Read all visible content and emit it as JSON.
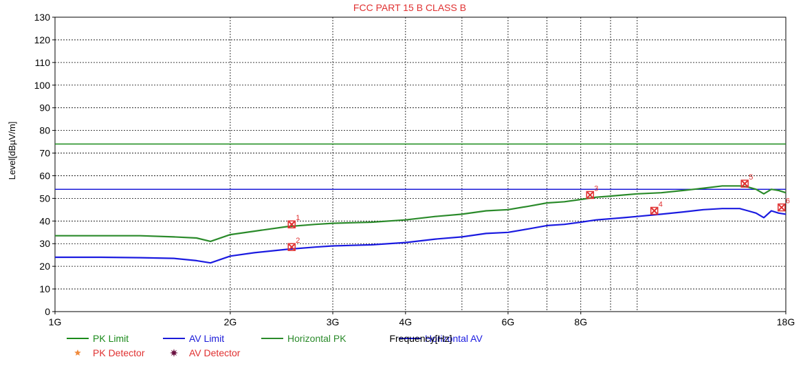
{
  "chart_data": {
    "type": "line",
    "title": "FCC PART 15 B CLASS B",
    "xlabel": "Frequency[Hz]",
    "ylabel": "Level[dBµV/m]",
    "x_scale": "log",
    "xlim": [
      1,
      18
    ],
    "ylim": [
      0,
      130
    ],
    "x_ticks": [
      {
        "value": 1,
        "label": "1G"
      },
      {
        "value": 2,
        "label": "2G"
      },
      {
        "value": 3,
        "label": "3G"
      },
      {
        "value": 4,
        "label": "4G"
      },
      {
        "value": 6,
        "label": "6G"
      },
      {
        "value": 8,
        "label": "8G"
      },
      {
        "value": 18,
        "label": "18G"
      }
    ],
    "x_gridlines": [
      2,
      3,
      4,
      5,
      6,
      7,
      8,
      9,
      10,
      18
    ],
    "y_ticks": [
      0,
      10,
      20,
      30,
      40,
      50,
      60,
      70,
      80,
      90,
      100,
      110,
      120,
      130
    ],
    "grid": true,
    "legend_position": "bottom-left",
    "series": [
      {
        "name": "PK Limit",
        "color": "#1a8a1a",
        "x": [
          1,
          18
        ],
        "y": [
          74,
          74
        ]
      },
      {
        "name": "AV Limit",
        "color": "#1a1ad8",
        "x": [
          1,
          18
        ],
        "y": [
          54,
          54
        ]
      },
      {
        "name": "Horizontal PK",
        "color": "#2a8a2a",
        "x": [
          1.0,
          1.2,
          1.4,
          1.6,
          1.75,
          1.85,
          2.0,
          2.2,
          2.5,
          2.8,
          3.0,
          3.5,
          4.0,
          4.5,
          5.0,
          5.5,
          6.0,
          6.5,
          7.0,
          7.5,
          8.0,
          8.5,
          9.0,
          9.5,
          10.0,
          11.0,
          12.0,
          13.0,
          14.0,
          15.0,
          15.5,
          16.0,
          16.5,
          17.0,
          17.5,
          18.0
        ],
        "y": [
          33.5,
          33.5,
          33.5,
          33.0,
          32.5,
          31.0,
          34.0,
          35.5,
          37.5,
          38.5,
          39.0,
          39.5,
          40.5,
          42.0,
          43.0,
          44.5,
          45.0,
          46.5,
          48.0,
          48.5,
          49.5,
          50.5,
          51.0,
          51.5,
          52.0,
          52.5,
          53.5,
          54.5,
          55.5,
          55.5,
          55.0,
          54.0,
          52.0,
          54.0,
          53.5,
          52.5
        ]
      },
      {
        "name": "Horizontal AV",
        "color": "#1a1ae0",
        "x": [
          1.0,
          1.2,
          1.4,
          1.6,
          1.75,
          1.85,
          2.0,
          2.2,
          2.5,
          2.8,
          3.0,
          3.5,
          4.0,
          4.5,
          5.0,
          5.5,
          6.0,
          6.5,
          7.0,
          7.5,
          8.0,
          8.5,
          9.0,
          9.5,
          10.0,
          11.0,
          12.0,
          13.0,
          14.0,
          15.0,
          15.5,
          16.0,
          16.5,
          17.0,
          17.5,
          18.0
        ],
        "y": [
          24.0,
          24.0,
          23.8,
          23.5,
          22.5,
          21.5,
          24.5,
          26.0,
          27.5,
          28.5,
          29.0,
          29.5,
          30.5,
          32.0,
          33.0,
          34.5,
          35.0,
          36.5,
          38.0,
          38.5,
          39.5,
          40.5,
          41.0,
          41.5,
          42.0,
          43.0,
          44.0,
          45.0,
          45.5,
          45.5,
          44.5,
          43.5,
          41.5,
          44.5,
          43.5,
          43.0
        ]
      }
    ],
    "markers": [
      {
        "label": "1",
        "x": 2.55,
        "y": 38.5
      },
      {
        "label": "2",
        "x": 2.55,
        "y": 28.5
      },
      {
        "label": "3",
        "x": 8.3,
        "y": 51.5
      },
      {
        "label": "4",
        "x": 10.7,
        "y": 44.5
      },
      {
        "label": "5",
        "x": 15.3,
        "y": 56.5
      },
      {
        "label": "6",
        "x": 17.7,
        "y": 46.0
      }
    ],
    "legend": [
      {
        "label": "PK Limit",
        "kind": "line",
        "color": "#1a8a1a"
      },
      {
        "label": "AV Limit",
        "kind": "line",
        "color": "#1a1ad8"
      },
      {
        "label": "Horizontal PK",
        "kind": "line",
        "color": "#2a8a2a"
      },
      {
        "label": "Horizontal AV",
        "kind": "line",
        "color": "#1a1ae0"
      },
      {
        "label": "PK Detector",
        "kind": "star",
        "color": "#f08a3c"
      },
      {
        "label": "AV Detector",
        "kind": "burst",
        "color": "#6a1040"
      }
    ],
    "colors": {
      "title": "#e03030",
      "marker": "#e03030",
      "text": "#000000",
      "grid": "#000000"
    }
  }
}
